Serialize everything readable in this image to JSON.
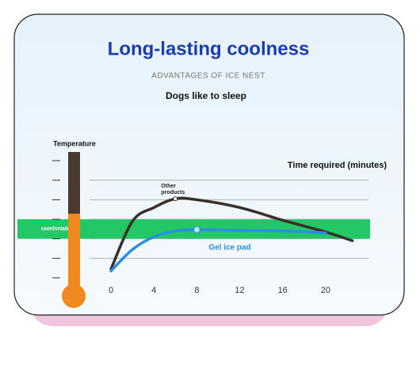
{
  "chart_data": {
    "type": "line",
    "title": "Long-lasting coolness",
    "subtitle": "ADVANTAGES OF ICE NEST",
    "caption": "Dogs like to sleep",
    "ylabel": "Temperature",
    "xlabel": "Time required (minutes)",
    "band": {
      "label": "comfortable",
      "range": [
        2,
        3
      ],
      "color": "#22c766"
    },
    "x": [
      0,
      2,
      4,
      6,
      8,
      12,
      16,
      20,
      22.5
    ],
    "xlim": [
      -2,
      24
    ],
    "xticks": [
      0,
      4,
      8,
      12,
      16,
      20
    ],
    "ylim": [
      0,
      6
    ],
    "yticks": [
      0,
      1,
      2,
      3,
      4,
      5,
      6
    ],
    "grid": true,
    "series": [
      {
        "name": "Other products",
        "color": "#3a2f2a",
        "values": [
          0.45,
          2.9,
          3.6,
          4.05,
          4.0,
          3.6,
          2.95,
          2.35,
          1.9
        ]
      },
      {
        "name": "Gel ice pad",
        "color": "#2a8fe0",
        "values": [
          0.35,
          1.45,
          2.1,
          2.4,
          2.47,
          2.43,
          2.4,
          2.3,
          null
        ]
      }
    ]
  }
}
